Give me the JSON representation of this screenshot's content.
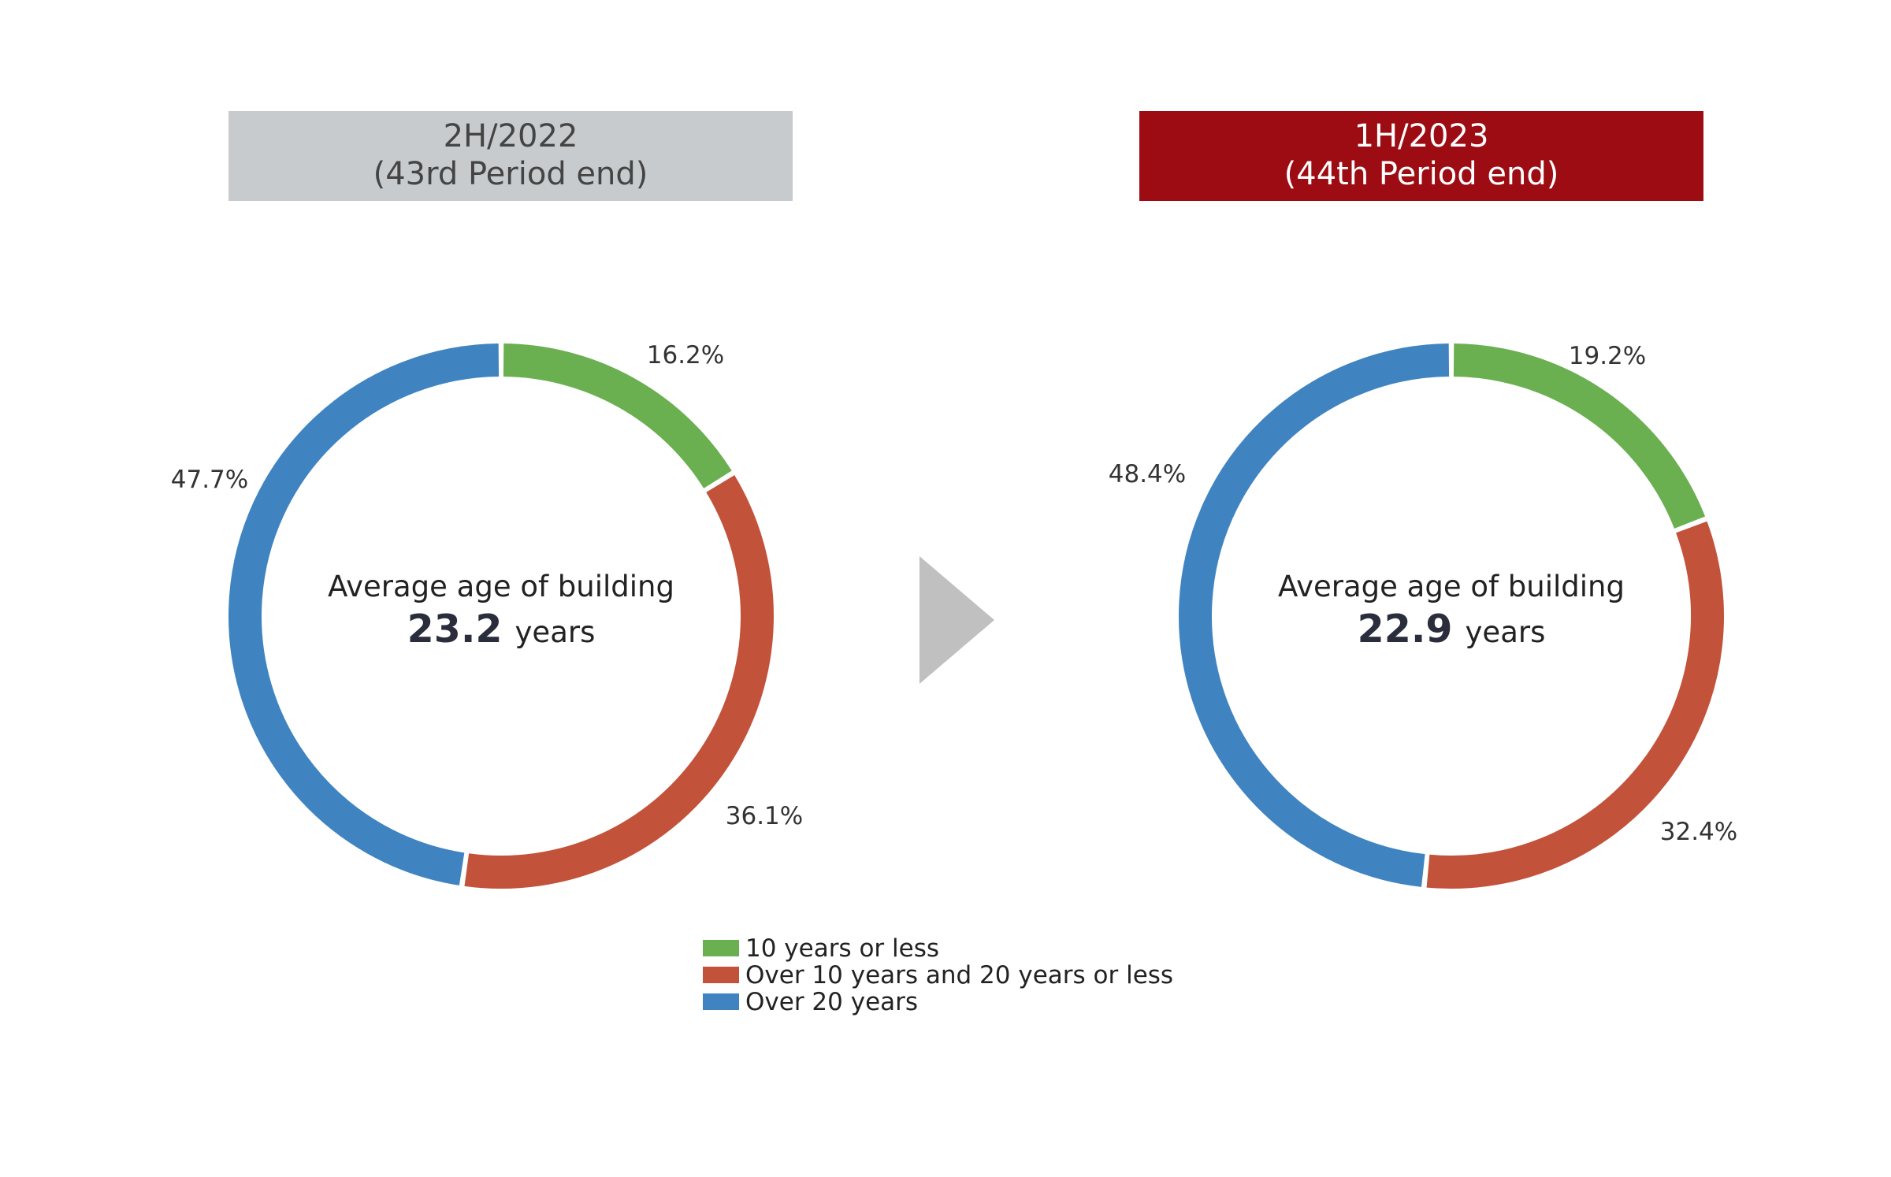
{
  "colors": {
    "green": "#6aaf50",
    "red": "#c3523b",
    "blue": "#3f84c1",
    "header_gray": "#c8cbce",
    "header_red": "#9c0c12",
    "arrow": "#c0c0c0"
  },
  "chart_data": [
    {
      "type": "pie",
      "title_line1": "2H/2022",
      "title_line2": "(43rd Period end)",
      "header_color": "#c8cbce",
      "header_text_color": "#444444",
      "center_label": "Average age of building",
      "center_value": "23.2",
      "center_unit": "years",
      "slices": [
        {
          "label": "10 years or less",
          "value": 16.2,
          "text": "16.2%",
          "color": "#6aaf50"
        },
        {
          "label": "Over 10 years and 20 years or less",
          "value": 36.1,
          "text": "36.1%",
          "color": "#c3523b"
        },
        {
          "label": "Over 20 years",
          "value": 47.7,
          "text": "47.7%",
          "color": "#3f84c1"
        }
      ]
    },
    {
      "type": "pie",
      "title_line1": "1H/2023",
      "title_line2": "(44th Period end)",
      "header_color": "#9c0c12",
      "header_text_color": "#ffffff",
      "center_label": "Average age of building",
      "center_value": "22.9",
      "center_unit": "years",
      "slices": [
        {
          "label": "10 years or less",
          "value": 19.2,
          "text": "19.2%",
          "color": "#6aaf50"
        },
        {
          "label": "Over 10 years and 20 years or less",
          "value": 32.4,
          "text": "32.4%",
          "color": "#c3523b"
        },
        {
          "label": "Over 20 years",
          "value": 48.4,
          "text": "48.4%",
          "color": "#3f84c1"
        }
      ]
    }
  ],
  "legend": [
    {
      "label": "10 years or less",
      "color": "#6aaf50"
    },
    {
      "label": "Over 10 years and 20 years or less",
      "color": "#c3523b"
    },
    {
      "label": "Over 20 years",
      "color": "#3f84c1"
    }
  ]
}
